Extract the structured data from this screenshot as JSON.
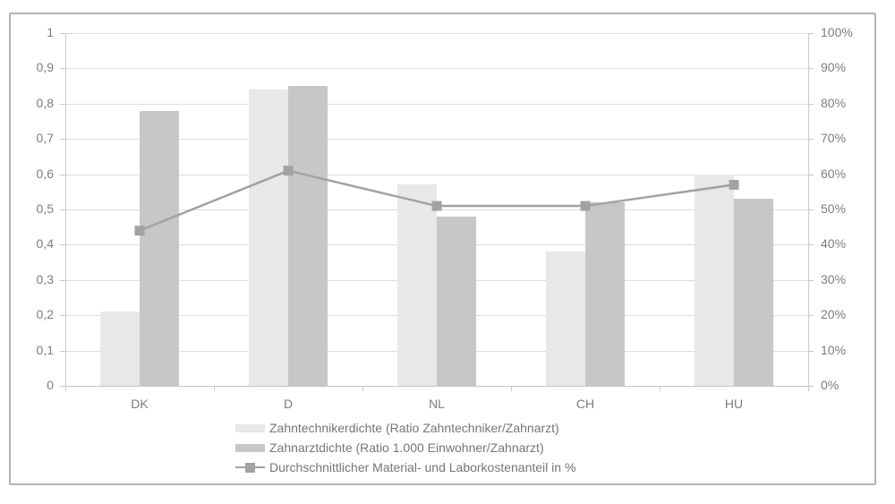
{
  "chart_data": {
    "type": "bar",
    "subtype": "grouped-bars-with-line-overlay",
    "categories": [
      "DK",
      "D",
      "NL",
      "CH",
      "HU"
    ],
    "series": [
      {
        "name": "Zahntechnikerdichte (Ratio Zahntechniker/Zahnarzt)",
        "type": "bar",
        "axis": "left",
        "color": "#e8e8e8",
        "values": [
          0.21,
          0.84,
          0.57,
          0.38,
          0.6
        ]
      },
      {
        "name": "Zahnarztdichte (Ratio 1.000 Einwohner/Zahnarzt)",
        "type": "bar",
        "axis": "left",
        "color": "#c7c7c7",
        "values": [
          0.78,
          0.85,
          0.48,
          0.52,
          0.53
        ]
      },
      {
        "name": "Durchschnittlicher Material- und Laborkostenanteil in %",
        "type": "line",
        "axis": "right",
        "color": "#a2a2a2",
        "values_percent": [
          44,
          61,
          51,
          51,
          57
        ]
      }
    ],
    "title": "",
    "xlabel": "",
    "ylabel": "",
    "left_axis": {
      "min": 0,
      "max": 1,
      "ticks": [
        "1",
        "0,9",
        "0,8",
        "0,7",
        "0,6",
        "0,5",
        "0,4",
        "0,3",
        "0,2",
        "0,1",
        "0"
      ]
    },
    "right_axis": {
      "min": 0,
      "max": 100,
      "ticks": [
        "100%",
        "90%",
        "80%",
        "70%",
        "60%",
        "50%",
        "40%",
        "30%",
        "20%",
        "10%",
        "0%"
      ]
    },
    "grid": true,
    "legend_position": "bottom",
    "colors": {
      "gridline": "#dcdcdc",
      "axis_line": "#c6c6c6",
      "text": "#7d7d7d",
      "frame_border": "#b3b3b3",
      "background": "#ffffff"
    }
  }
}
